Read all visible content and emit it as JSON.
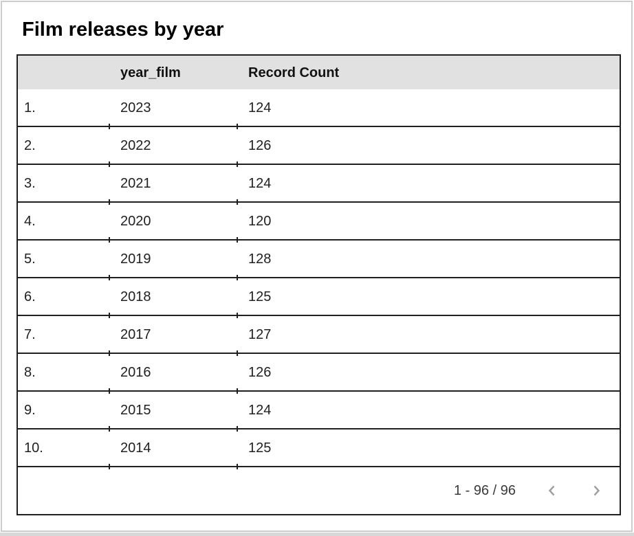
{
  "chart_data": {
    "type": "table",
    "title": "Film releases by year",
    "columns": [
      "",
      "year_film",
      "Record Count"
    ],
    "rows": [
      [
        "1.",
        "2023",
        "124"
      ],
      [
        "2.",
        "2022",
        "126"
      ],
      [
        "3.",
        "2021",
        "124"
      ],
      [
        "4.",
        "2020",
        "120"
      ],
      [
        "5.",
        "2019",
        "128"
      ],
      [
        "6.",
        "2018",
        "125"
      ],
      [
        "7.",
        "2017",
        "127"
      ],
      [
        "8.",
        "2016",
        "126"
      ],
      [
        "9.",
        "2015",
        "124"
      ],
      [
        "10.",
        "2014",
        "125"
      ]
    ],
    "layout_hints": {
      "header_background": true,
      "row_dividers": true,
      "pagination": "bottom-right"
    }
  },
  "pagination": {
    "range_label": "1 - 96 / 96",
    "prev_icon": "chevron-left",
    "next_icon": "chevron-right"
  },
  "colors": {
    "header_bg": "#e1e1e1",
    "table_border": "#1f1f1f",
    "card_border": "#cccccc",
    "chevron": "#9e9e9e",
    "text": "#202124",
    "canvas_strip": "#d8d8d8"
  }
}
